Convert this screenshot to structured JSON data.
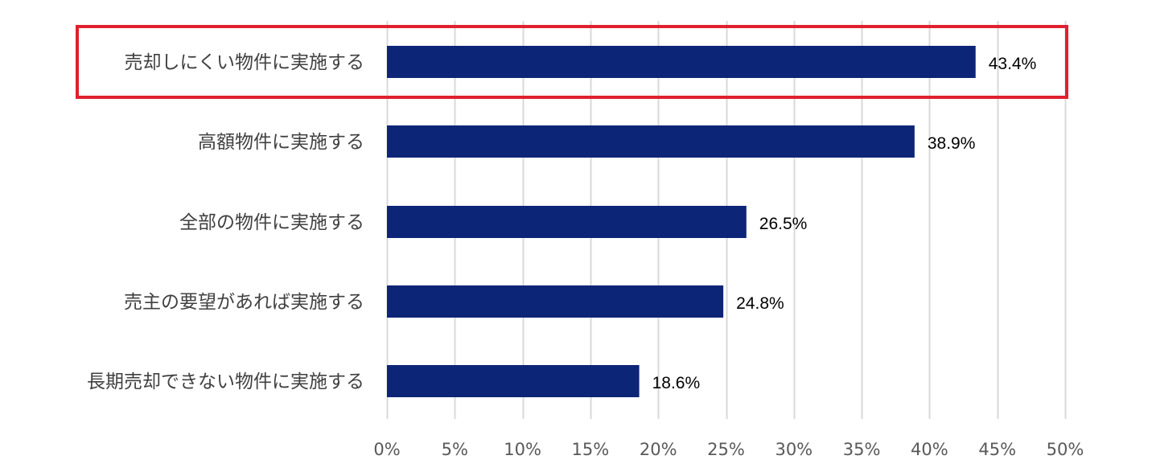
{
  "chart_data": {
    "type": "bar",
    "orientation": "horizontal",
    "categories": [
      "売却しにくい物件に実施する",
      "高額物件に実施する",
      "全部の物件に実施する",
      "売主の要望があれば実施する",
      "長期売却できない物件に実施する"
    ],
    "values": [
      43.4,
      38.9,
      26.5,
      24.8,
      18.6
    ],
    "value_labels": [
      "43.4%",
      "38.9%",
      "26.5%",
      "24.8%",
      "18.6%"
    ],
    "xlim": [
      0,
      50
    ],
    "xticks": [
      0,
      5,
      10,
      15,
      20,
      25,
      30,
      35,
      40,
      45,
      50
    ],
    "xtick_labels": [
      "0%",
      "5%",
      "10%",
      "15%",
      "20%",
      "25%",
      "30%",
      "35%",
      "40%",
      "45%",
      "50%"
    ],
    "grid": "vertical",
    "legend": "none",
    "highlighted_category_index": 0,
    "colors": {
      "bar": "#0d2577",
      "grid": "#d9d9d9",
      "highlight_box": "#e0202e"
    }
  }
}
